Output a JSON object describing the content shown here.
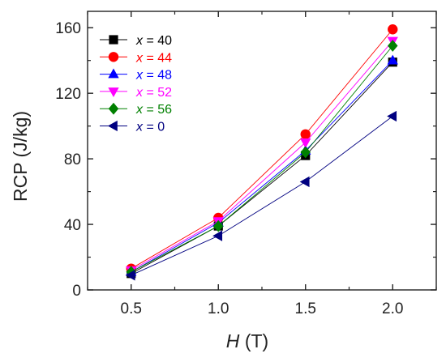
{
  "chart_data": {
    "type": "line",
    "title": "",
    "xlabel": {
      "symbol": "H",
      "unit": "(T)"
    },
    "ylabel": "RCP (J/kg)",
    "x": [
      0.5,
      1.0,
      1.5,
      2.0
    ],
    "x_tick_labels": [
      "0.5",
      "1.0",
      "1.5",
      "2.0"
    ],
    "y_ticks": [
      0,
      40,
      80,
      120,
      160
    ],
    "xlim": [
      0.25,
      2.25
    ],
    "ylim": [
      0,
      170
    ],
    "grid": false,
    "legend_position": "top-left",
    "series": [
      {
        "name_var": "x",
        "name_value": "= 40",
        "marker": "square",
        "color": "#000000",
        "values": [
          10,
          39,
          82,
          139
        ]
      },
      {
        "name_var": "x",
        "name_value": "= 44",
        "marker": "circle",
        "color": "#ff0000",
        "values": [
          13,
          44,
          95,
          159
        ]
      },
      {
        "name_var": "x",
        "name_value": "= 48",
        "marker": "triangle-up",
        "color": "#0000ff",
        "values": [
          11,
          41,
          85,
          140
        ]
      },
      {
        "name_var": "x",
        "name_value": "= 52",
        "marker": "triangle-down",
        "color": "#ff00ff",
        "values": [
          12,
          42,
          90,
          152
        ]
      },
      {
        "name_var": "x",
        "name_value": "= 56",
        "marker": "diamond",
        "color": "#008000",
        "values": [
          11,
          39,
          84,
          149
        ]
      },
      {
        "name_var": "x",
        "name_value": "= 0",
        "marker": "triangle-left",
        "color": "#000080",
        "values": [
          9,
          33,
          66,
          106
        ]
      }
    ]
  }
}
